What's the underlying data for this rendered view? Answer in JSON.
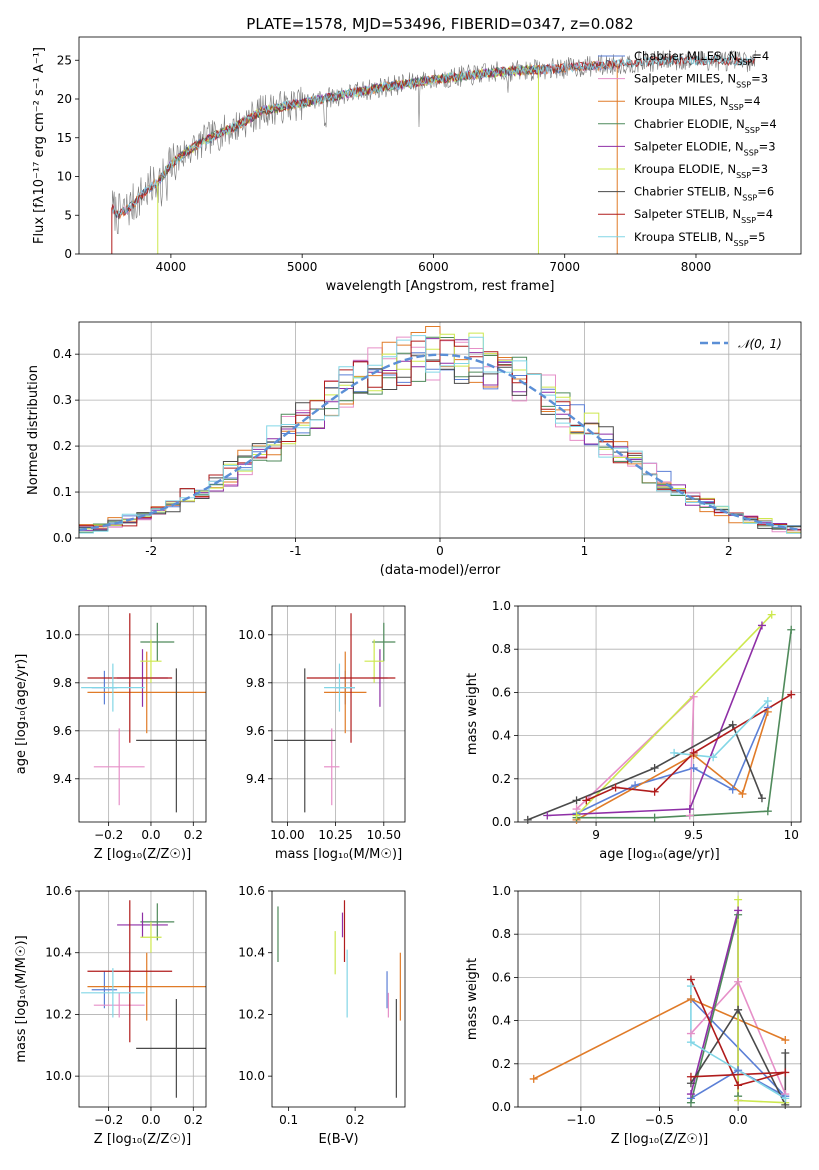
{
  "figure": {
    "title": "PLATE=1578, MJD=53496, FIBERID=0347, z=0.082"
  },
  "colors": {
    "Chabrier MILES": "#5b7fd6",
    "Salpeter MILES": "#e68fc8",
    "Kroupa MILES": "#e07b28",
    "Chabrier ELODIE": "#4f8a5b",
    "Salpeter ELODIE": "#8e2fa6",
    "Kroupa ELODIE": "#cde84e",
    "Chabrier STELIB": "#4a4a4a",
    "Salpeter STELIB": "#b01c1c",
    "Kroupa STELIB": "#82d6e6"
  },
  "chart_data": [
    {
      "id": "spectrum",
      "type": "line",
      "title": "PLATE=1578, MJD=53496, FIBERID=0347, z=0.082",
      "xlabel": "wavelength [Angstrom, rest frame]",
      "ylabel": "Flux [fλ10⁻¹⁷ erg cm⁻² s⁻¹ A⁻¹]",
      "xlim": [
        3300,
        8800
      ],
      "ylim": [
        0,
        28
      ],
      "xticks": [
        4000,
        5000,
        6000,
        7000,
        8000
      ],
      "yticks": [
        0,
        5,
        10,
        15,
        20,
        25
      ],
      "legend_position": "top-right",
      "data_color": "#7a7a7a",
      "continuum": [
        [
          3550,
          6
        ],
        [
          3600,
          5
        ],
        [
          3700,
          6.2
        ],
        [
          3800,
          8
        ],
        [
          3900,
          9.3
        ],
        [
          4000,
          11.5
        ],
        [
          4100,
          13
        ],
        [
          4300,
          15
        ],
        [
          4500,
          16.5
        ],
        [
          4700,
          18.5
        ],
        [
          5000,
          19.5
        ],
        [
          5300,
          20.5
        ],
        [
          5600,
          21.5
        ],
        [
          6000,
          22.5
        ],
        [
          6500,
          23.5
        ],
        [
          7000,
          24
        ],
        [
          7400,
          24.5
        ],
        [
          7800,
          25
        ],
        [
          8200,
          25
        ],
        [
          8500,
          24.8
        ]
      ],
      "series": [
        {
          "name": "Chabrier MILES",
          "nssp": "4",
          "x_range": [
            3550,
            7400
          ]
        },
        {
          "name": "Salpeter MILES",
          "nssp": "3",
          "x_range": [
            3550,
            7400
          ]
        },
        {
          "name": "Kroupa MILES",
          "nssp": "4",
          "x_range": [
            3550,
            7400
          ]
        },
        {
          "name": "Chabrier ELODIE",
          "nssp": "4",
          "x_range": [
            3900,
            6800
          ]
        },
        {
          "name": "Salpeter ELODIE",
          "nssp": "3",
          "x_range": [
            3900,
            6800
          ]
        },
        {
          "name": "Kroupa ELODIE",
          "nssp": "3",
          "x_range": [
            3900,
            6800
          ]
        },
        {
          "name": "Chabrier STELIB",
          "nssp": "6",
          "x_range": [
            3550,
            8450
          ]
        },
        {
          "name": "Salpeter STELIB",
          "nssp": "4",
          "x_range": [
            3550,
            8450
          ]
        },
        {
          "name": "Kroupa STELIB",
          "nssp": "5",
          "x_range": [
            3550,
            8450
          ]
        }
      ]
    },
    {
      "id": "residuals",
      "type": "line",
      "xlabel": "(data-model)/error",
      "ylabel": "Normed distribution",
      "xlim": [
        -2.5,
        2.5
      ],
      "ylim": [
        0,
        0.47
      ],
      "xticks": [
        -2,
        -1,
        0,
        1,
        2
      ],
      "yticks": [
        0.0,
        0.1,
        0.2,
        0.3,
        0.4
      ],
      "grid": true,
      "legend_position": "top-right",
      "gaussian": {
        "label": "𝒩(0, 1)",
        "color": "#5b8fd6",
        "mean": 0,
        "sigma": 1
      },
      "bin_width": 0.1
    },
    {
      "id": "age_vs_Z",
      "type": "scatter",
      "xlabel": "Z [log₁₀(Z/Z☉)]",
      "ylabel": "age  [log₁₀(age/yr)]",
      "xlim": [
        -0.34,
        0.26
      ],
      "ylim": [
        9.22,
        10.12
      ],
      "xticks": [
        -0.2,
        0.0,
        0.2
      ],
      "xtick_labels": [
        "−0.2",
        "0.0",
        "0.2"
      ],
      "yticks": [
        9.4,
        9.6,
        9.8,
        10.0
      ],
      "grid": true,
      "points": [
        {
          "series": "Chabrier MILES",
          "x": -0.22,
          "xerr": 0.06,
          "y": 9.78,
          "yerr": 0.07
        },
        {
          "series": "Salpeter MILES",
          "x": -0.15,
          "xerr": 0.12,
          "y": 9.45,
          "yerr": 0.16
        },
        {
          "series": "Kroupa MILES",
          "x": -0.02,
          "xerr": 0.28,
          "y": 9.76,
          "yerr": 0.17
        },
        {
          "series": "Chabrier ELODIE",
          "x": 0.03,
          "xerr": 0.08,
          "y": 9.97,
          "yerr": 0.08
        },
        {
          "series": "Salpeter ELODIE",
          "x": -0.04,
          "xerr": 0.12,
          "y": 9.82,
          "yerr": 0.12
        },
        {
          "series": "Kroupa ELODIE",
          "x": 0.0,
          "xerr": 0.05,
          "y": 9.89,
          "yerr": 0.09
        },
        {
          "series": "Chabrier STELIB",
          "x": 0.12,
          "xerr": 0.19,
          "y": 9.56,
          "yerr": 0.3
        },
        {
          "series": "Salpeter STELIB",
          "x": -0.1,
          "xerr": 0.2,
          "y": 9.82,
          "yerr": 0.27
        },
        {
          "series": "Kroupa STELIB",
          "x": -0.18,
          "xerr": 0.15,
          "y": 9.78,
          "yerr": 0.1
        }
      ]
    },
    {
      "id": "age_vs_mass",
      "type": "scatter",
      "xlabel": "mass [log₁₀(M/M☉)]",
      "ylabel": "",
      "xlim": [
        9.92,
        10.61
      ],
      "ylim": [
        9.22,
        10.12
      ],
      "xticks": [
        10.0,
        10.25,
        10.5
      ],
      "xtick_labels": [
        "10.00",
        "10.25",
        "10.50"
      ],
      "yticks": [
        9.4,
        9.6,
        9.8,
        10.0
      ],
      "grid": true,
      "points": [
        {
          "series": "Chabrier MILES",
          "x": 10.3,
          "xerr": 0.05,
          "y": 9.78,
          "yerr": 0.07
        },
        {
          "series": "Salpeter MILES",
          "x": 10.23,
          "xerr": 0.04,
          "y": 9.45,
          "yerr": 0.16
        },
        {
          "series": "Kroupa MILES",
          "x": 10.3,
          "xerr": 0.11,
          "y": 9.76,
          "yerr": 0.17
        },
        {
          "series": "Chabrier ELODIE",
          "x": 10.5,
          "xerr": 0.06,
          "y": 9.97,
          "yerr": 0.08
        },
        {
          "series": "Salpeter ELODIE",
          "x": 10.48,
          "xerr": 0.04,
          "y": 9.82,
          "yerr": 0.12
        },
        {
          "series": "Kroupa ELODIE",
          "x": 10.45,
          "xerr": 0.05,
          "y": 9.89,
          "yerr": 0.09
        },
        {
          "series": "Chabrier STELIB",
          "x": 10.09,
          "xerr": 0.16,
          "y": 9.56,
          "yerr": 0.3
        },
        {
          "series": "Salpeter STELIB",
          "x": 10.33,
          "xerr": 0.23,
          "y": 9.82,
          "yerr": 0.27
        },
        {
          "series": "Kroupa STELIB",
          "x": 10.27,
          "xerr": 0.08,
          "y": 9.78,
          "yerr": 0.1
        }
      ]
    },
    {
      "id": "mass_weight_vs_age",
      "type": "line",
      "xlabel": "age  [log₁₀(age/yr)]",
      "ylabel": "mass weight",
      "xlim": [
        8.6,
        10.05
      ],
      "ylim": [
        0,
        1
      ],
      "xticks": [
        9.0,
        9.5,
        10.0
      ],
      "yticks": [
        0.0,
        0.2,
        0.4,
        0.6,
        0.8,
        1.0
      ],
      "grid": true,
      "series": [
        {
          "name": "Chabrier MILES",
          "points": [
            [
              8.9,
              0.04
            ],
            [
              9.2,
              0.17
            ],
            [
              9.5,
              0.25
            ],
            [
              9.7,
              0.15
            ],
            [
              9.88,
              0.53
            ]
          ]
        },
        {
          "name": "Salpeter MILES",
          "points": [
            [
              8.9,
              0.06
            ],
            [
              9.5,
              0.58
            ],
            [
              9.48,
              0.03
            ]
          ]
        },
        {
          "name": "Kroupa MILES",
          "points": [
            [
              8.9,
              0.01
            ],
            [
              9.5,
              0.31
            ],
            [
              9.75,
              0.13
            ],
            [
              9.88,
              0.51
            ]
          ]
        },
        {
          "name": "Chabrier ELODIE",
          "points": [
            [
              8.9,
              0.02
            ],
            [
              9.3,
              0.02
            ],
            [
              9.88,
              0.05
            ],
            [
              10.0,
              0.89
            ]
          ]
        },
        {
          "name": "Salpeter ELODIE",
          "points": [
            [
              8.75,
              0.03
            ],
            [
              9.48,
              0.06
            ],
            [
              9.85,
              0.91
            ]
          ]
        },
        {
          "name": "Kroupa ELODIE",
          "points": [
            [
              8.9,
              0.03
            ],
            [
              9.9,
              0.96
            ]
          ]
        },
        {
          "name": "Chabrier STELIB",
          "points": [
            [
              8.65,
              0.01
            ],
            [
              8.9,
              0.1
            ],
            [
              9.3,
              0.25
            ],
            [
              9.7,
              0.45
            ],
            [
              9.85,
              0.11
            ]
          ]
        },
        {
          "name": "Salpeter STELIB",
          "points": [
            [
              8.95,
              0.1
            ],
            [
              9.1,
              0.16
            ],
            [
              9.3,
              0.14
            ],
            [
              9.5,
              0.32
            ],
            [
              10.0,
              0.59
            ]
          ]
        },
        {
          "name": "Kroupa STELIB",
          "points": [
            [
              9.4,
              0.32
            ],
            [
              9.6,
              0.3
            ],
            [
              9.88,
              0.56
            ]
          ]
        }
      ]
    },
    {
      "id": "mass_vs_Z",
      "type": "scatter",
      "xlabel": "Z [log₁₀(Z/Z☉)]",
      "ylabel": "mass [log₁₀(M/M☉)]",
      "xlim": [
        -0.34,
        0.26
      ],
      "ylim": [
        9.9,
        10.6
      ],
      "xticks": [
        -0.2,
        0.0,
        0.2
      ],
      "xtick_labels": [
        "−0.2",
        "0.0",
        "0.2"
      ],
      "yticks": [
        10.0,
        10.2,
        10.4,
        10.6
      ],
      "grid": true,
      "points": [
        {
          "series": "Chabrier MILES",
          "x": -0.22,
          "xerr": 0.06,
          "y": 10.28,
          "yerr": 0.06
        },
        {
          "series": "Salpeter MILES",
          "x": -0.15,
          "xerr": 0.12,
          "y": 10.23,
          "yerr": 0.04
        },
        {
          "series": "Kroupa MILES",
          "x": -0.02,
          "xerr": 0.28,
          "y": 10.29,
          "yerr": 0.11
        },
        {
          "series": "Chabrier ELODIE",
          "x": 0.03,
          "xerr": 0.08,
          "y": 10.5,
          "yerr": 0.06
        },
        {
          "series": "Salpeter ELODIE",
          "x": -0.04,
          "xerr": 0.12,
          "y": 10.49,
          "yerr": 0.04
        },
        {
          "series": "Kroupa ELODIE",
          "x": 0.0,
          "xerr": 0.05,
          "y": 10.45,
          "yerr": 0.05
        },
        {
          "series": "Chabrier STELIB",
          "x": 0.12,
          "xerr": 0.19,
          "y": 10.09,
          "yerr": 0.16
        },
        {
          "series": "Salpeter STELIB",
          "x": -0.1,
          "xerr": 0.2,
          "y": 10.34,
          "yerr": 0.23
        },
        {
          "series": "Kroupa STELIB",
          "x": -0.18,
          "xerr": 0.15,
          "y": 10.27,
          "yerr": 0.08
        }
      ]
    },
    {
      "id": "mass_vs_ebv",
      "type": "scatter",
      "xlabel": "E(B-V)",
      "ylabel": "",
      "xlim": [
        0.075,
        0.275
      ],
      "ylim": [
        9.9,
        10.6
      ],
      "xticks": [
        0.1,
        0.2
      ],
      "xtick_labels": [
        "0.1",
        "0.2"
      ],
      "yticks": [
        10.0,
        10.2,
        10.4,
        10.6
      ],
      "grid": false,
      "points": [
        {
          "series": "Chabrier MILES",
          "x": 0.248,
          "xerr": 0,
          "y": 10.28,
          "yerr": 0.06
        },
        {
          "series": "Salpeter MILES",
          "x": 0.25,
          "xerr": 0,
          "y": 10.23,
          "yerr": 0.04
        },
        {
          "series": "Kroupa MILES",
          "x": 0.268,
          "xerr": 0,
          "y": 10.29,
          "yerr": 0.11
        },
        {
          "series": "Chabrier ELODIE",
          "x": 0.084,
          "xerr": 0,
          "y": 10.46,
          "yerr": 0.09
        },
        {
          "series": "Salpeter ELODIE",
          "x": 0.181,
          "xerr": 0,
          "y": 10.49,
          "yerr": 0.04
        },
        {
          "series": "Kroupa ELODIE",
          "x": 0.17,
          "xerr": 0,
          "y": 10.4,
          "yerr": 0.07
        },
        {
          "series": "Chabrier STELIB",
          "x": 0.262,
          "xerr": 0,
          "y": 10.09,
          "yerr": 0.16
        },
        {
          "series": "Salpeter STELIB",
          "x": 0.184,
          "xerr": 0,
          "y": 10.47,
          "yerr": 0.1
        },
        {
          "series": "Kroupa STELIB",
          "x": 0.188,
          "xerr": 0,
          "y": 10.3,
          "yerr": 0.11
        }
      ]
    },
    {
      "id": "mass_weight_vs_Z",
      "type": "line",
      "xlabel": "Z [log₁₀(Z/Z☉)]",
      "ylabel": "mass weight",
      "xlim": [
        -1.4,
        0.4
      ],
      "ylim": [
        0,
        1
      ],
      "xticks": [
        -1.0,
        -0.5,
        0.0
      ],
      "xtick_labels": [
        "−1.0",
        "−0.5",
        "0.0"
      ],
      "yticks": [
        0.0,
        0.2,
        0.4,
        0.6,
        0.8,
        1.0
      ],
      "grid": true,
      "series": [
        {
          "name": "Chabrier MILES",
          "points": [
            [
              -0.3,
              0.04
            ],
            [
              0.0,
              0.17
            ],
            [
              0.3,
              0.05
            ],
            [
              -0.3,
              0.5
            ]
          ]
        },
        {
          "name": "Salpeter MILES",
          "points": [
            [
              -0.3,
              0.34
            ],
            [
              0.0,
              0.58
            ],
            [
              0.3,
              0.06
            ]
          ]
        },
        {
          "name": "Kroupa MILES",
          "points": [
            [
              -1.3,
              0.13
            ],
            [
              -0.3,
              0.5
            ],
            [
              0.3,
              0.31
            ]
          ]
        },
        {
          "name": "Chabrier ELODIE",
          "points": [
            [
              -0.3,
              0.02
            ],
            [
              0.0,
              0.89
            ],
            [
              0.0,
              0.05
            ]
          ]
        },
        {
          "name": "Salpeter ELODIE",
          "points": [
            [
              -0.3,
              0.06
            ],
            [
              0.0,
              0.91
            ],
            [
              0.0,
              0.03
            ]
          ]
        },
        {
          "name": "Kroupa ELODIE",
          "points": [
            [
              0.0,
              0.96
            ],
            [
              0.0,
              0.03
            ],
            [
              0.3,
              0.02
            ]
          ]
        },
        {
          "name": "Chabrier STELIB",
          "points": [
            [
              -0.3,
              0.11
            ],
            [
              0.0,
              0.45
            ],
            [
              0.3,
              0.01
            ],
            [
              0.3,
              0.25
            ]
          ]
        },
        {
          "name": "Salpeter STELIB",
          "points": [
            [
              -0.3,
              0.59
            ],
            [
              0.0,
              0.1
            ],
            [
              0.3,
              0.16
            ],
            [
              -0.3,
              0.14
            ]
          ]
        },
        {
          "name": "Kroupa STELIB",
          "points": [
            [
              -0.3,
              0.56
            ],
            [
              -0.3,
              0.3
            ],
            [
              0.3,
              0.04
            ]
          ]
        }
      ]
    }
  ]
}
